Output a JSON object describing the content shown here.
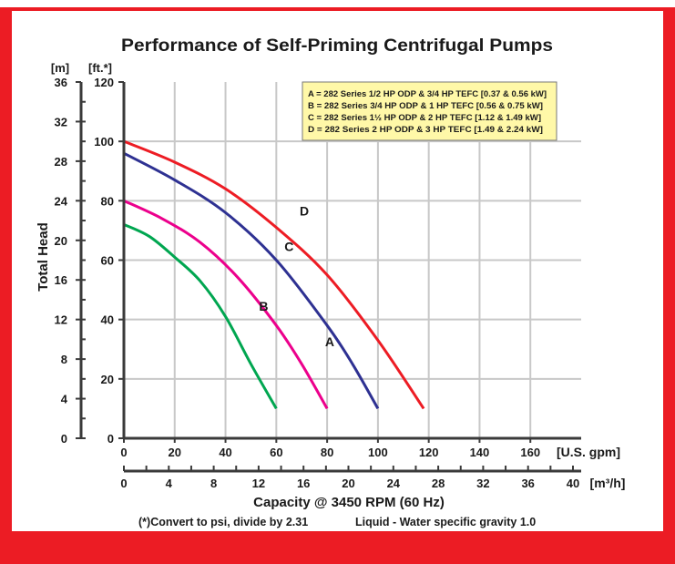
{
  "chart_data": {
    "type": "line",
    "title": "Performance of Self-Priming Centrifugal Pumps",
    "ylabel": "Total Head",
    "y_units_left": "[m]",
    "y_units_right": "[ft.*]",
    "x_units_top": "[U.S. gpm]",
    "x_units_bottom": "[m³/h]",
    "xlabel": "Capacity @ 3450 RPM (60 Hz)",
    "footnote_left": "(*)Convert to psi, divide by 2.31",
    "footnote_right": "Liquid - Water specific gravity 1.0",
    "xlim": [
      0,
      180
    ],
    "ylim": [
      0,
      120
    ],
    "gpm_ticks": [
      "0",
      "20",
      "40",
      "60",
      "80",
      "100",
      "120",
      "140",
      "160"
    ],
    "m3h_ticks": [
      "0",
      "4",
      "8",
      "12",
      "16",
      "20",
      "24",
      "28",
      "32",
      "36",
      "40"
    ],
    "ft_ticks": [
      "0",
      "20",
      "40",
      "60",
      "80",
      "100",
      "120"
    ],
    "m_ticks": [
      "0",
      "4",
      "8",
      "12",
      "16",
      "20",
      "24",
      "28",
      "32",
      "36"
    ],
    "grid": true,
    "legend_position": "top-right",
    "legend": [
      "A = 282 Series 1/2 HP ODP & 3/4 HP TEFC [0.37 & 0.56 kW]",
      "B = 282 Series 3/4 HP ODP & 1 HP TEFC [0.56 & 0.75 kW]",
      "C = 282 Series 1½ HP ODP & 2 HP TEFC [1.12 & 1.49 kW]",
      "D = 282 Series 2 HP ODP & 3 HP TEFC [1.49 & 2.24 kW]"
    ],
    "series": [
      {
        "name": "A",
        "color": "#00a650",
        "x": [
          0,
          10,
          20,
          30,
          40,
          50,
          60
        ],
        "y": [
          72,
          68,
          61,
          53,
          41,
          25,
          10
        ]
      },
      {
        "name": "B",
        "color": "#ec008c",
        "x": [
          0,
          15,
          30,
          45,
          60,
          70,
          80
        ],
        "y": [
          80,
          74,
          66,
          54,
          38,
          25,
          10
        ]
      },
      {
        "name": "C",
        "color": "#2e3192",
        "x": [
          0,
          20,
          40,
          60,
          80,
          90,
          100
        ],
        "y": [
          96,
          87,
          76,
          60,
          38,
          25,
          10
        ]
      },
      {
        "name": "D",
        "color": "#ed1c24",
        "x": [
          0,
          20,
          40,
          60,
          80,
          100,
          118
        ],
        "y": [
          100,
          93,
          84,
          71,
          55,
          33,
          10
        ]
      }
    ]
  }
}
